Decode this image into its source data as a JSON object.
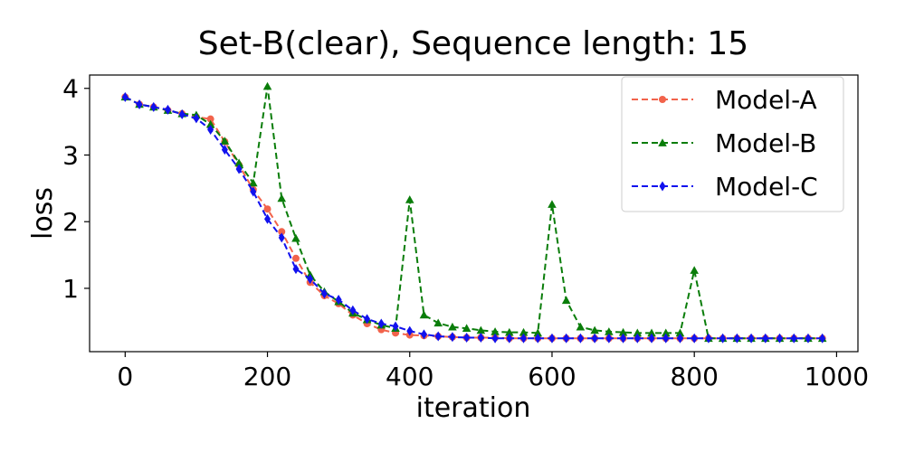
{
  "chart_data": {
    "type": "line",
    "title": "Set-B(clear), Sequence length: 15",
    "xlabel": "iteration",
    "ylabel": "loss",
    "xlim": [
      -50,
      1030
    ],
    "ylim": [
      0.05,
      4.2
    ],
    "xticks": [
      0,
      200,
      400,
      600,
      800,
      1000
    ],
    "yticks": [
      1,
      2,
      3,
      4
    ],
    "grid": false,
    "legend_position": "top-right",
    "series": [
      {
        "name": "Model-A",
        "color": "#f2634b",
        "marker": "circle",
        "x": [
          0,
          20,
          40,
          60,
          80,
          100,
          120,
          140,
          160,
          180,
          200,
          220,
          240,
          260,
          280,
          300,
          320,
          340,
          360,
          380,
          400,
          420,
          440,
          460,
          480,
          500,
          520,
          540,
          560,
          580,
          600,
          620,
          640,
          660,
          680,
          700,
          720,
          740,
          760,
          780,
          800,
          820,
          840,
          860,
          880,
          900,
          920,
          940,
          960,
          980
        ],
        "y": [
          3.87,
          3.76,
          3.72,
          3.67,
          3.62,
          3.57,
          3.54,
          3.2,
          2.85,
          2.48,
          2.19,
          1.85,
          1.45,
          1.09,
          0.89,
          0.77,
          0.6,
          0.47,
          0.38,
          0.33,
          0.3,
          0.29,
          0.28,
          0.27,
          0.26,
          0.26,
          0.26,
          0.25,
          0.25,
          0.25,
          0.25,
          0.25,
          0.25,
          0.25,
          0.25,
          0.25,
          0.25,
          0.25,
          0.25,
          0.25,
          0.25,
          0.25,
          0.25,
          0.25,
          0.25,
          0.25,
          0.25,
          0.25,
          0.25,
          0.25
        ]
      },
      {
        "name": "Model-B",
        "color": "#0a7d0a",
        "marker": "triangle",
        "x": [
          0,
          20,
          40,
          60,
          80,
          100,
          120,
          140,
          160,
          180,
          200,
          220,
          240,
          260,
          280,
          300,
          320,
          340,
          360,
          380,
          400,
          420,
          440,
          460,
          480,
          500,
          520,
          540,
          560,
          580,
          600,
          620,
          640,
          660,
          680,
          700,
          720,
          740,
          760,
          780,
          800,
          820,
          840,
          860,
          880,
          900,
          920,
          940,
          960,
          980
        ],
        "y": [
          3.87,
          3.76,
          3.72,
          3.67,
          3.62,
          3.6,
          3.46,
          3.21,
          2.88,
          2.58,
          4.03,
          2.35,
          1.75,
          1.2,
          0.95,
          0.8,
          0.63,
          0.53,
          0.45,
          0.4,
          2.33,
          0.6,
          0.48,
          0.42,
          0.4,
          0.37,
          0.35,
          0.34,
          0.34,
          0.33,
          2.26,
          0.82,
          0.42,
          0.37,
          0.35,
          0.34,
          0.33,
          0.33,
          0.33,
          0.33,
          1.27,
          0.25,
          0.25,
          0.25,
          0.25,
          0.25,
          0.25,
          0.25,
          0.25,
          0.25
        ]
      },
      {
        "name": "Model-C",
        "color": "#1111ee",
        "marker": "diamond",
        "x": [
          0,
          20,
          40,
          60,
          80,
          100,
          120,
          140,
          160,
          180,
          200,
          220,
          240,
          260,
          280,
          300,
          320,
          340,
          360,
          380,
          400,
          420,
          440,
          460,
          480,
          500,
          520,
          540,
          560,
          580,
          600,
          620,
          640,
          660,
          680,
          700,
          720,
          740,
          760,
          780,
          800,
          820,
          840,
          860,
          880,
          900,
          920,
          940,
          960,
          980
        ],
        "y": [
          3.87,
          3.76,
          3.72,
          3.68,
          3.61,
          3.55,
          3.38,
          3.08,
          2.79,
          2.45,
          2.04,
          1.76,
          1.29,
          1.14,
          0.92,
          0.83,
          0.67,
          0.54,
          0.47,
          0.43,
          0.36,
          0.31,
          0.28,
          0.27,
          0.26,
          0.26,
          0.25,
          0.25,
          0.25,
          0.25,
          0.25,
          0.25,
          0.25,
          0.25,
          0.25,
          0.25,
          0.25,
          0.25,
          0.25,
          0.25,
          0.25,
          0.25,
          0.25,
          0.25,
          0.25,
          0.25,
          0.25,
          0.25,
          0.25,
          0.25
        ]
      }
    ]
  }
}
